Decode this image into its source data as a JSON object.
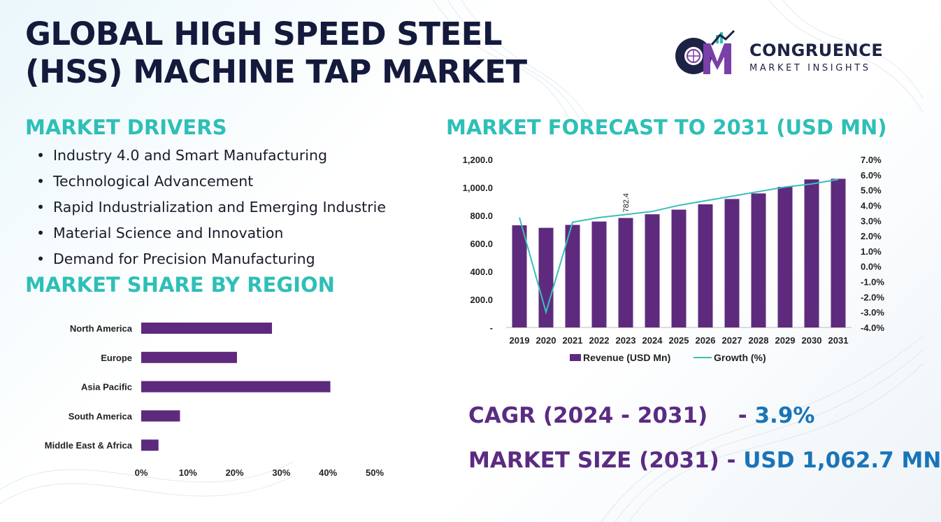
{
  "title_lines": [
    "GLOBAL HIGH SPEED STEEL",
    "(HSS) MACHINE TAP MARKET"
  ],
  "logo": {
    "name": "CONGRUENCE",
    "subtitle": "MARKET INSIGHTS",
    "mark": "CM"
  },
  "drivers": {
    "heading": "MARKET DRIVERS",
    "items": [
      "Industry 4.0 and Smart Manufacturing",
      "Technological Advancement",
      "Rapid Industrialization and Emerging Industrie",
      "Material Science and Innovation",
      "Demand for Precision Manufacturing"
    ]
  },
  "share_heading": "MARKET SHARE BY REGION",
  "forecast_heading": "MARKET FORECAST TO 2031 (USD MN)",
  "stats": {
    "cagr_label": "CAGR (2024 - 2031)",
    "cagr_dash": "-",
    "cagr_value": "3.9%",
    "size_label": "MARKET SIZE (2031)",
    "size_dash": "-",
    "size_value": "USD 1,062.7 MN"
  },
  "colors": {
    "bar": "#5e2a7e",
    "line": "#3bbfb8",
    "heading": "#2ebfb7",
    "title": "#141a3c",
    "stat_label": "#5b2b82",
    "stat_value": "#1a74b8"
  },
  "chart_data": [
    {
      "type": "bar",
      "orientation": "horizontal",
      "categories": [
        "North America",
        "Europe",
        "Asia Pacific",
        "South America",
        "Middle East & Africa"
      ],
      "values": [
        28,
        20.5,
        40.5,
        8.3,
        3.7
      ],
      "xlim": [
        0,
        50
      ],
      "x_ticks": [
        "0%",
        "10%",
        "20%",
        "30%",
        "40%",
        "50%"
      ],
      "grid": false
    },
    {
      "type": "bar",
      "categories": [
        "2019",
        "2020",
        "2021",
        "2022",
        "2023",
        "2024",
        "2025",
        "2026",
        "2027",
        "2028",
        "2029",
        "2030",
        "2031"
      ],
      "series": [
        {
          "name": "Revenue (USD Mn)",
          "type": "bar",
          "axis": "left",
          "values": [
            730,
            712,
            733,
            757,
            782.4,
            809,
            842,
            880,
            918,
            958,
            1005,
            1058,
            1062.7
          ]
        },
        {
          "name": "Growth (%)",
          "type": "line",
          "axis": "right",
          "values": [
            3.2,
            -3.0,
            2.9,
            3.2,
            3.4,
            3.6,
            4.0,
            4.3,
            4.6,
            4.9,
            5.2,
            5.4,
            5.7
          ]
        }
      ],
      "data_labels": [
        {
          "category": "2023",
          "text": "782.4"
        }
      ],
      "ylim_left": [
        0,
        1200
      ],
      "y_ticks_left": [
        "-",
        "200.0",
        "400.0",
        "600.0",
        "800.0",
        "1,000.0",
        "1,200.0"
      ],
      "ylim_right": [
        -4,
        7
      ],
      "y_ticks_right": [
        "-4.0%",
        "-3.0%",
        "-2.0%",
        "-1.0%",
        "0.0%",
        "1.0%",
        "2.0%",
        "3.0%",
        "4.0%",
        "5.0%",
        "6.0%",
        "7.0%"
      ],
      "legend_position": "bottom",
      "grid": false
    }
  ]
}
